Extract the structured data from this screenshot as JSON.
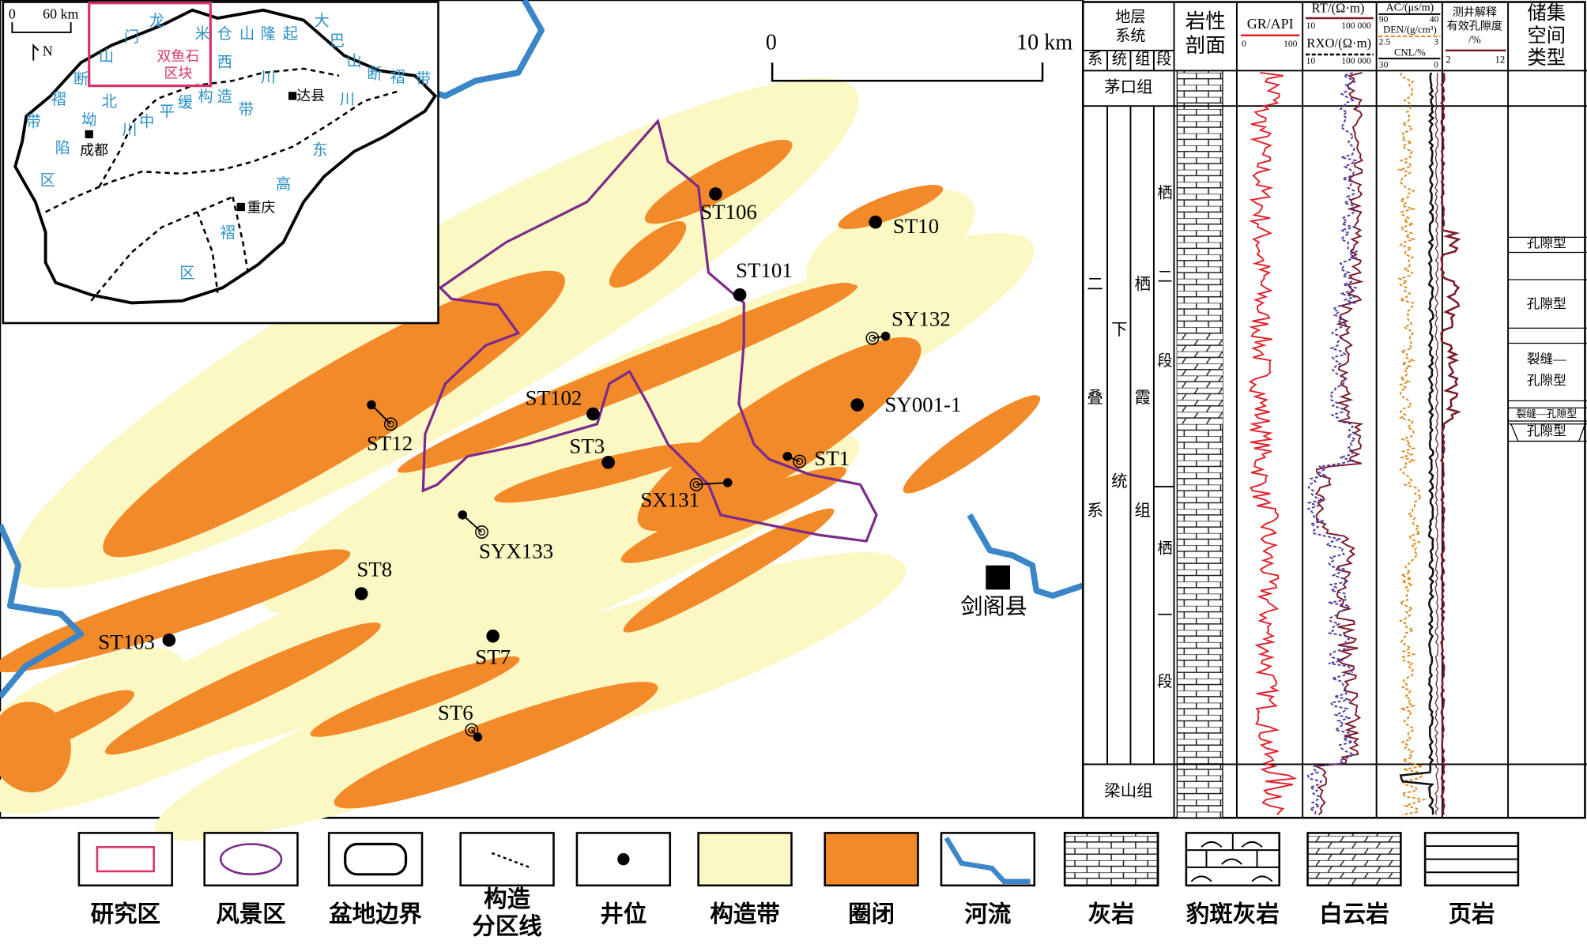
{
  "inset": {
    "scale": [
      "0",
      "60 km"
    ],
    "north": "N",
    "study_area": [
      "双鱼石",
      "区块"
    ],
    "cities": [
      "成都",
      "达县",
      "重庆"
    ],
    "region_labels": [
      "龙",
      "门",
      "山",
      "断",
      "褶",
      "带",
      "米",
      "仓",
      "山",
      "隆",
      "起",
      "大",
      "巴",
      "山",
      "断",
      "褶",
      "带",
      "西",
      "川",
      "川",
      "北",
      "坳",
      "川",
      "中",
      "平",
      "缓",
      "构",
      "造",
      "带",
      "陷",
      "区",
      "东",
      "高",
      "褶",
      "区"
    ]
  },
  "map": {
    "scale": [
      "0",
      "10 km"
    ],
    "wells": [
      "ST106",
      "ST10",
      "ST101",
      "SY132",
      "SY001-1",
      "ST102",
      "ST12",
      "ST3",
      "ST1",
      "SX131",
      "SYX133",
      "ST8",
      "ST103",
      "ST7",
      "ST6"
    ],
    "county": "剑阁县"
  },
  "column": {
    "header": {
      "strata": [
        "地层",
        "系统"
      ],
      "sub": [
        "系",
        "统",
        "组",
        "段"
      ],
      "lithology": [
        "岩性",
        "剖面"
      ],
      "gr": "GR/API",
      "gr_range": [
        "0",
        "100"
      ],
      "rt": "RT/(Ω·m)",
      "rt_range": [
        "10",
        "100 000"
      ],
      "rxo": "RXO/(Ω·m)",
      "rxo_range": [
        "10",
        "100 000"
      ],
      "ac": "AC/(μs/m)",
      "ac_range": [
        "90",
        "40"
      ],
      "den": "DEN/(g/cm³)",
      "den_range": [
        "2.5",
        "3"
      ],
      "cnl": "CNL/%",
      "cnl_range": [
        "30",
        "0"
      ],
      "porosity": [
        "测井解释",
        "有效孔隙度",
        "/%"
      ],
      "porosity_range": [
        "2",
        "12"
      ],
      "reservoir": [
        "储集",
        "空间",
        "类型"
      ]
    },
    "units": {
      "maokou": "茅口组",
      "system": "二叠系",
      "series": "下统",
      "formation": "栖霞组",
      "member2": "栖二段",
      "member1": "栖一段",
      "liangshan": "梁山组"
    },
    "reservoir_types": [
      {
        "lines": [
          "孔隙型"
        ]
      },
      {
        "lines": [
          "孔隙型"
        ]
      },
      {
        "lines": [
          "裂缝—",
          "孔隙型"
        ]
      },
      {
        "lines": [
          "裂缝—孔隙型"
        ]
      },
      {
        "lines": [
          "孔隙型"
        ]
      }
    ]
  },
  "legend": [
    {
      "lines": [
        "研究区"
      ]
    },
    {
      "lines": [
        "风景区"
      ]
    },
    {
      "lines": [
        "盆地边界"
      ]
    },
    {
      "lines": [
        "构造",
        "分区线"
      ]
    },
    {
      "lines": [
        "井位"
      ]
    },
    {
      "lines": [
        "构造带"
      ]
    },
    {
      "lines": [
        "圈闭"
      ]
    },
    {
      "lines": [
        "河流"
      ]
    },
    {
      "lines": [
        "灰岩"
      ]
    },
    {
      "lines": [
        "豹斑灰岩"
      ]
    },
    {
      "lines": [
        "白云岩"
      ]
    },
    {
      "lines": [
        "页岩"
      ]
    }
  ]
}
